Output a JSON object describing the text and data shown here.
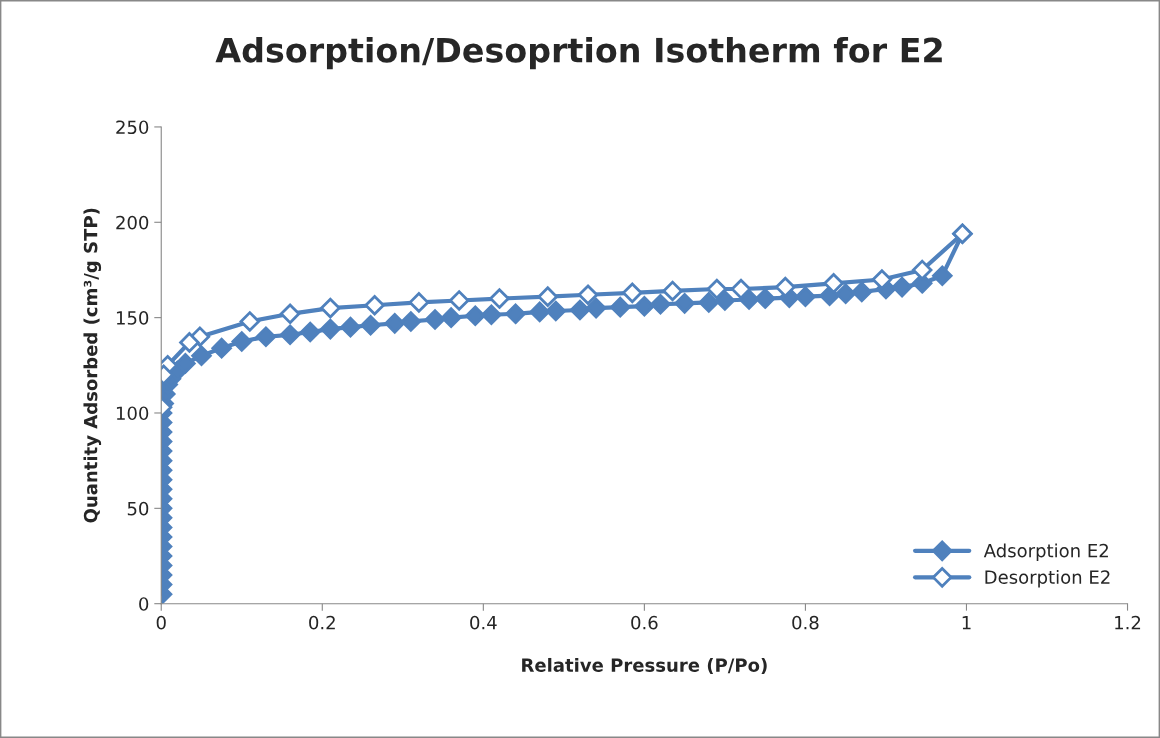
{
  "chart_data": {
    "type": "line",
    "title": "Adsorption/Desoprtion Isotherm for E2",
    "xlabel": "Relative Pressure (P/Po)",
    "ylabel": "Quantity Adsorbed (cm³/g STP)",
    "xlim": [
      0,
      1.2
    ],
    "xticks": [
      0,
      {
        "value": 0.2,
        "label": "0.2"
      },
      {
        "value": 0.4,
        "label": "0.4"
      },
      {
        "value": 0.6,
        "label": "0.6"
      },
      {
        "value": 0.8,
        "label": "0.8"
      },
      1,
      {
        "value": 1.2,
        "label": "1.2"
      }
    ],
    "ylim": [
      0,
      250
    ],
    "yticks": [
      0,
      50,
      100,
      150,
      200,
      250
    ],
    "grid": false,
    "legend": "lower right",
    "marker": "diamond",
    "line_style": "solid",
    "series": [
      {
        "name": "Adsorption E2",
        "color": "#4f81bd",
        "x": [
          0.001,
          0.001,
          0.001,
          0.001,
          0.001,
          0.001,
          0.001,
          0.001,
          0.001,
          0.001,
          0.001,
          0.001,
          0.001,
          0.001,
          0.001,
          0.001,
          0.001,
          0.001,
          0.001,
          0.001,
          0.003,
          0.005,
          0.008,
          0.012,
          0.02,
          0.03,
          0.05,
          0.075,
          0.1,
          0.13,
          0.16,
          0.185,
          0.21,
          0.235,
          0.26,
          0.29,
          0.31,
          0.34,
          0.36,
          0.39,
          0.41,
          0.44,
          0.47,
          0.49,
          0.52,
          0.54,
          0.57,
          0.6,
          0.62,
          0.65,
          0.68,
          0.7,
          0.73,
          0.75,
          0.78,
          0.8,
          0.83,
          0.85,
          0.87,
          0.9,
          0.92,
          0.945,
          0.97,
          0.995
        ],
        "values": [
          5,
          10,
          15,
          20,
          25,
          30,
          35,
          40,
          45,
          50,
          55,
          60,
          65,
          70,
          75,
          80,
          85,
          90,
          95,
          100,
          105,
          110,
          115,
          118,
          122,
          126,
          130,
          134,
          137.5,
          140,
          141,
          142.5,
          144,
          145,
          146,
          147,
          148,
          149,
          150,
          151,
          151.5,
          152,
          153,
          153.5,
          154,
          155,
          155.5,
          156,
          157,
          157.5,
          158,
          159,
          159.5,
          160,
          160.5,
          161,
          161.5,
          162.5,
          163.5,
          165,
          166,
          168,
          172,
          194
        ]
      },
      {
        "name": "Desorption E2",
        "color": "#4f81bd",
        "x": [
          0.995,
          0.945,
          0.895,
          0.835,
          0.775,
          0.72,
          0.69,
          0.635,
          0.585,
          0.53,
          0.48,
          0.42,
          0.37,
          0.32,
          0.265,
          0.21,
          0.16,
          0.11,
          0.048,
          0.035,
          0.008,
          0.003,
          0.001
        ],
        "values": [
          194,
          175,
          170,
          168,
          166,
          165,
          165,
          164,
          163,
          162,
          161,
          160,
          159,
          158,
          156.5,
          155,
          152,
          148,
          140,
          137,
          125,
          120,
          103
        ]
      }
    ]
  }
}
